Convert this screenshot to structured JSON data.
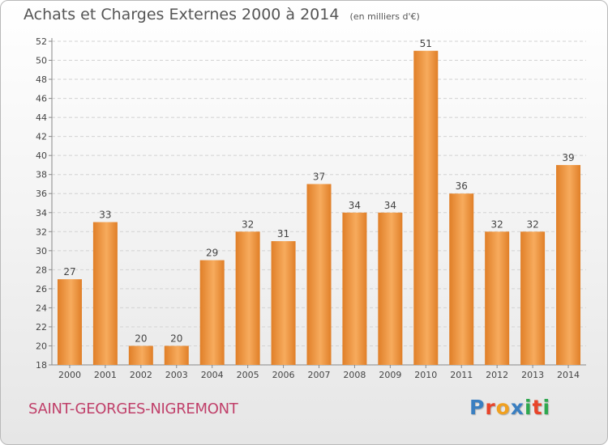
{
  "header": {
    "title": "Achats et Charges Externes 2000 à 2014",
    "subtitle": "(en milliers d'€)"
  },
  "footer": {
    "commune": "SAINT-GEORGES-NIGREMONT",
    "logo": "Proxiti"
  },
  "logo_colors": [
    "#3a7fc1",
    "#e8442a",
    "#f0a020",
    "#3a7fc1",
    "#2fa84f",
    "#e8442a",
    "#2fa84f"
  ],
  "chart_data": {
    "type": "bar",
    "title": "Achats et Charges Externes 2000 à 2014",
    "subtitle": "(en milliers d'€)",
    "categories": [
      "2000",
      "2001",
      "2002",
      "2003",
      "2004",
      "2005",
      "2006",
      "2007",
      "2008",
      "2009",
      "2010",
      "2011",
      "2012",
      "2013",
      "2014"
    ],
    "values": [
      27,
      33,
      20,
      20,
      29,
      32,
      31,
      37,
      34,
      34,
      51,
      36,
      32,
      32,
      39
    ],
    "ylim": [
      18,
      52
    ],
    "yticks": [
      18,
      20,
      22,
      24,
      26,
      28,
      30,
      32,
      34,
      36,
      38,
      40,
      42,
      44,
      46,
      48,
      50,
      52
    ],
    "grid": true,
    "legend": "none",
    "data_labels": true,
    "bar_color": "#e07f28",
    "bar_color_light": "#f7ab5d"
  }
}
